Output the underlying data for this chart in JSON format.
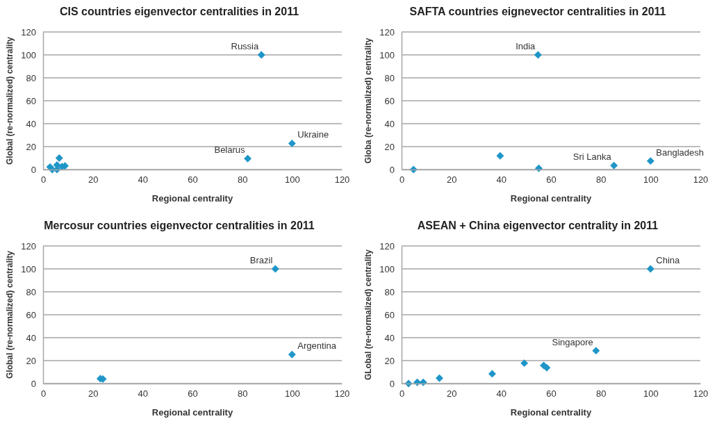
{
  "chart_data": [
    {
      "type": "scatter",
      "title": "CIS countries eigenvector centralities in 2011",
      "xlabel": "Regional centrality",
      "ylabel": "Global (re-normalized) centrality",
      "xlim": [
        0,
        120
      ],
      "ylim": [
        0,
        120
      ],
      "xticks": [
        0,
        20,
        40,
        60,
        80,
        100,
        120
      ],
      "yticks": [
        0,
        20,
        40,
        60,
        80,
        100,
        120
      ],
      "grid": "y",
      "marker": "diamond",
      "series": [
        {
          "color": "#1f96c8",
          "x": [
            2.8,
            3.7,
            5.6,
            5.6,
            6.5,
            7.6,
            8.8,
            87.7,
            82.2,
            100
          ],
          "values": [
            2.2,
            0,
            0,
            4,
            10,
            2.6,
            3.2,
            100,
            9.5,
            22.8
          ]
        }
      ],
      "annotations": [
        {
          "text": "Russia",
          "x": 87.7,
          "y": 100
        },
        {
          "text": "Belarus",
          "x": 82.2,
          "y": 9.5
        },
        {
          "text": "Ukraine",
          "x": 100,
          "y": 22.8
        }
      ]
    },
    {
      "type": "scatter",
      "title": "SAFTA countries eignevector centralities in 2011",
      "xlabel": "Regional centrality",
      "ylabel": "Globa (re-normalized) centrality",
      "xlim": [
        0,
        120
      ],
      "ylim": [
        0,
        120
      ],
      "xticks": [
        0,
        20,
        40,
        60,
        80,
        100,
        120
      ],
      "yticks": [
        0,
        20,
        40,
        60,
        80,
        100,
        120
      ],
      "grid": "y",
      "marker": "diamond",
      "series": [
        {
          "color": "#1f96c8",
          "x": [
            4.8,
            39.6,
            55.1,
            54.8,
            85.3,
            100
          ],
          "values": [
            0,
            12,
            1,
            100,
            3.5,
            7.5
          ]
        }
      ],
      "annotations": [
        {
          "text": "India",
          "x": 54.8,
          "y": 100
        },
        {
          "text": "Sri Lanka",
          "x": 85.3,
          "y": 3.5
        },
        {
          "text": "Bangladesh",
          "x": 100,
          "y": 7.5
        }
      ]
    },
    {
      "type": "scatter",
      "title": "Mercosur countries eigenvector centralities in 2011",
      "xlabel": "Regional centrality",
      "ylabel": "Global (re-normalized) centrality",
      "xlim": [
        0,
        120
      ],
      "ylim": [
        0,
        120
      ],
      "xticks": [
        0,
        20,
        40,
        60,
        80,
        100,
        120
      ],
      "yticks": [
        0,
        20,
        40,
        60,
        80,
        100,
        120
      ],
      "grid": "y",
      "marker": "diamond",
      "series": [
        {
          "color": "#1f96c8",
          "x": [
            23,
            24,
            93.3,
            100
          ],
          "values": [
            4.3,
            4,
            100,
            25.3
          ]
        }
      ],
      "annotations": [
        {
          "text": "Brazil",
          "x": 93.3,
          "y": 100
        },
        {
          "text": "Argentina",
          "x": 100,
          "y": 25.3
        }
      ]
    },
    {
      "type": "scatter",
      "title": "ASEAN + China eigenvector centrality in 2011",
      "xlabel": "Regional centrality",
      "ylabel": "GLobal (re-normalized) centrality",
      "xlim": [
        0,
        120
      ],
      "ylim": [
        0,
        120
      ],
      "xticks": [
        0,
        20,
        40,
        60,
        80,
        100,
        120
      ],
      "yticks": [
        0,
        20,
        40,
        60,
        80,
        100,
        120
      ],
      "grid": "y",
      "marker": "diamond",
      "series": [
        {
          "color": "#1f96c8",
          "x": [
            2.8,
            6.3,
            8.7,
            15.2,
            36.4,
            49.3,
            57.1,
            58.3,
            78.1,
            100
          ],
          "values": [
            0,
            1,
            1,
            4.7,
            8.5,
            17.8,
            15.8,
            13.8,
            28.7,
            100
          ]
        }
      ],
      "annotations": [
        {
          "text": "Singapore",
          "x": 78.1,
          "y": 28.7
        },
        {
          "text": "China",
          "x": 100,
          "y": 100
        }
      ]
    }
  ]
}
